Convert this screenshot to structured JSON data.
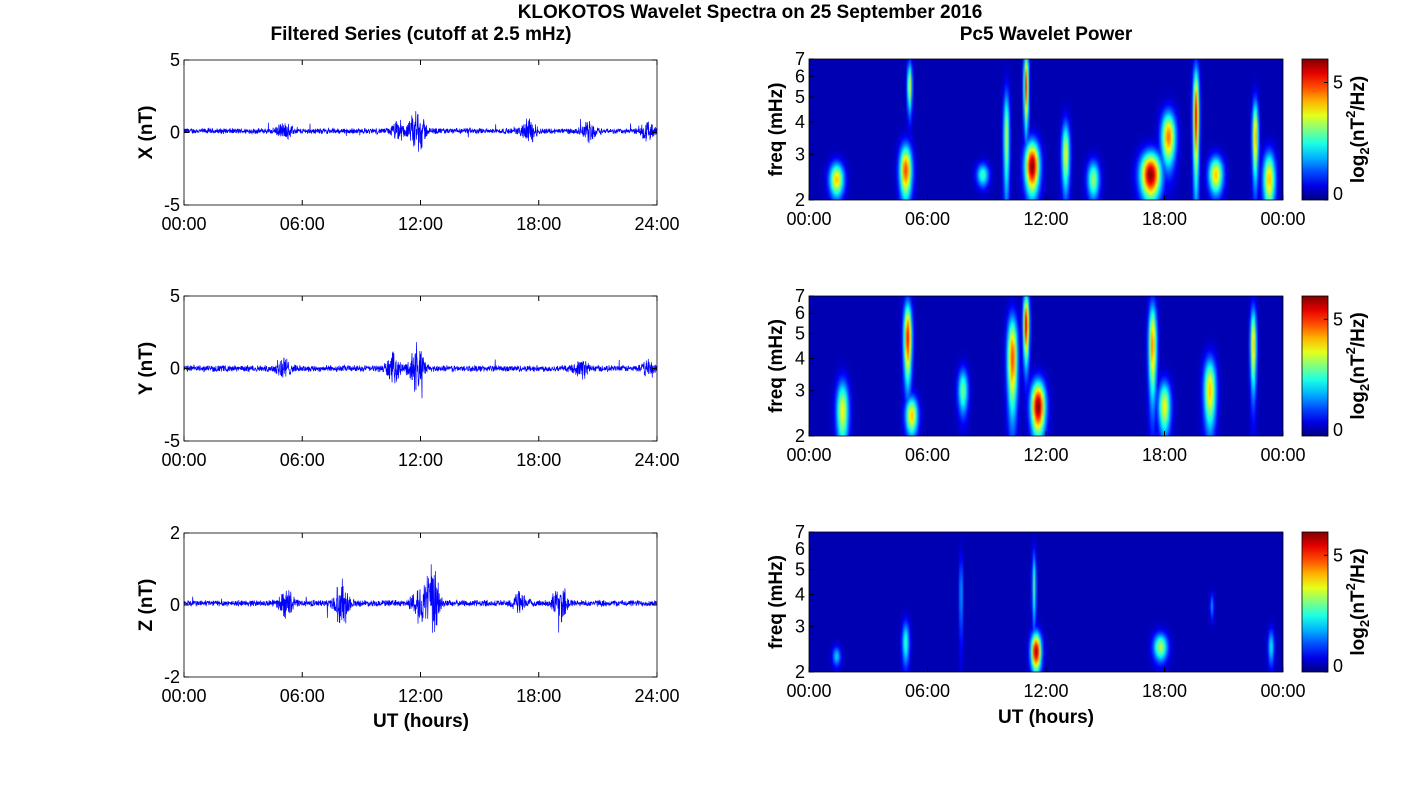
{
  "figure": {
    "suptitle": "KLOKOTOS Wavelet Spectra on 25 September 2016",
    "left_title": "Filtered Series (cutoff at 2.5 mHz)",
    "right_title": "Pc5 Wavelet Power",
    "x_label": "UT (hours)",
    "colors": {
      "trace": "#0000ff",
      "axes": "#000000"
    }
  },
  "chart_data": [
    {
      "type": "line",
      "component": "X",
      "ylabel": "X (nT)",
      "ylim": [
        -5,
        5
      ],
      "yticks": [
        "5",
        "0",
        "-5"
      ],
      "xlim": [
        0,
        24
      ],
      "xticks": [
        "00:00",
        "06:00",
        "12:00",
        "18:00",
        "24:00"
      ],
      "baseline": 0.1,
      "noise_amp": 0.22,
      "bursts": [
        {
          "t": 11.85,
          "amp": 1.9
        },
        {
          "t": 10.9,
          "amp": 0.7
        },
        {
          "t": 5.1,
          "amp": 0.55
        },
        {
          "t": 17.5,
          "amp": 0.9
        },
        {
          "t": 20.6,
          "amp": 0.7
        },
        {
          "t": 23.5,
          "amp": 0.7
        }
      ]
    },
    {
      "type": "line",
      "component": "Y",
      "ylabel": "Y (nT)",
      "ylim": [
        -5,
        5
      ],
      "yticks": [
        "5",
        "0",
        "-5"
      ],
      "xlim": [
        0,
        24
      ],
      "xticks": [
        "00:00",
        "06:00",
        "12:00",
        "18:00",
        "24:00"
      ],
      "baseline": 0.0,
      "noise_amp": 0.25,
      "bursts": [
        {
          "t": 11.8,
          "amp": 1.9
        },
        {
          "t": 10.6,
          "amp": 1.0
        },
        {
          "t": 5.0,
          "amp": 0.9
        },
        {
          "t": 20.2,
          "amp": 0.6
        },
        {
          "t": 23.6,
          "amp": 0.5
        }
      ]
    },
    {
      "type": "line",
      "component": "Z",
      "ylabel": "Z (nT)",
      "ylim": [
        -2,
        2
      ],
      "yticks": [
        "2",
        "0",
        "-2"
      ],
      "xlim": [
        0,
        24
      ],
      "xticks": [
        "00:00",
        "06:00",
        "12:00",
        "18:00",
        "24:00"
      ],
      "baseline": 0.05,
      "noise_amp": 0.1,
      "bursts": [
        {
          "t": 11.9,
          "amp": 0.5
        },
        {
          "t": 12.6,
          "amp": 1.2
        },
        {
          "t": 5.2,
          "amp": 0.4
        },
        {
          "t": 8.0,
          "amp": 0.7
        },
        {
          "t": 17.0,
          "amp": 0.3
        },
        {
          "t": 19.1,
          "amp": 0.6
        }
      ]
    },
    {
      "type": "heatmap",
      "component": "X",
      "ylabel": "freq (mHz)",
      "ylim": [
        2,
        7
      ],
      "yscale": "log",
      "yticks": [
        "7",
        "6",
        "5",
        "4",
        "3",
        "2"
      ],
      "xlim": [
        0,
        24
      ],
      "xticks": [
        "00:00",
        "06:00",
        "12:00",
        "18:00",
        "00:00"
      ],
      "colorbar_label": "log2(nT2/Hz)",
      "colorbar_ticks": [
        "5",
        "0"
      ],
      "crange": [
        0,
        6
      ],
      "blobs": [
        {
          "t": 1.4,
          "f": 2.4,
          "st": 0.35,
          "sf": 0.35,
          "p": 4.0
        },
        {
          "t": 4.9,
          "f": 2.6,
          "st": 0.3,
          "sf": 0.6,
          "p": 4.8
        },
        {
          "t": 5.1,
          "f": 5.5,
          "st": 0.12,
          "sf": 1.2,
          "p": 3.5
        },
        {
          "t": 8.8,
          "f": 2.5,
          "st": 0.3,
          "sf": 0.25,
          "p": 2.5
        },
        {
          "t": 10.0,
          "f": 3.5,
          "st": 0.15,
          "sf": 1.6,
          "p": 3.2
        },
        {
          "t": 11.3,
          "f": 2.7,
          "st": 0.35,
          "sf": 0.6,
          "p": 6.0
        },
        {
          "t": 11.0,
          "f": 5.5,
          "st": 0.12,
          "sf": 1.8,
          "p": 5.0
        },
        {
          "t": 13.0,
          "f": 3.0,
          "st": 0.2,
          "sf": 0.9,
          "p": 3.5
        },
        {
          "t": 14.4,
          "f": 2.4,
          "st": 0.3,
          "sf": 0.4,
          "p": 3.0
        },
        {
          "t": 17.3,
          "f": 2.5,
          "st": 0.5,
          "sf": 0.5,
          "p": 6.0
        },
        {
          "t": 18.2,
          "f": 3.5,
          "st": 0.35,
          "sf": 0.8,
          "p": 4.5
        },
        {
          "t": 19.6,
          "f": 4.2,
          "st": 0.15,
          "sf": 2.0,
          "p": 5.2
        },
        {
          "t": 20.6,
          "f": 2.5,
          "st": 0.35,
          "sf": 0.4,
          "p": 4.0
        },
        {
          "t": 22.6,
          "f": 3.5,
          "st": 0.15,
          "sf": 1.2,
          "p": 4.2
        },
        {
          "t": 23.3,
          "f": 2.4,
          "st": 0.3,
          "sf": 0.6,
          "p": 4.0
        }
      ]
    },
    {
      "type": "heatmap",
      "component": "Y",
      "ylabel": "freq (mHz)",
      "ylim": [
        2,
        7
      ],
      "yscale": "log",
      "yticks": [
        "7",
        "6",
        "5",
        "4",
        "3",
        "2"
      ],
      "xlim": [
        0,
        24
      ],
      "xticks": [
        "00:00",
        "06:00",
        "12:00",
        "18:00",
        "00:00"
      ],
      "colorbar_label": "log2(nT2/Hz)",
      "colorbar_ticks": [
        "5",
        "0"
      ],
      "crange": [
        0,
        6
      ],
      "blobs": [
        {
          "t": 1.7,
          "f": 2.5,
          "st": 0.3,
          "sf": 0.7,
          "p": 3.6
        },
        {
          "t": 5.0,
          "f": 4.8,
          "st": 0.2,
          "sf": 1.6,
          "p": 5.2
        },
        {
          "t": 5.2,
          "f": 2.4,
          "st": 0.3,
          "sf": 0.4,
          "p": 4.0
        },
        {
          "t": 7.8,
          "f": 3.0,
          "st": 0.25,
          "sf": 0.6,
          "p": 2.8
        },
        {
          "t": 10.3,
          "f": 4.0,
          "st": 0.25,
          "sf": 1.6,
          "p": 4.8
        },
        {
          "t": 11.6,
          "f": 2.6,
          "st": 0.35,
          "sf": 0.6,
          "p": 6.0
        },
        {
          "t": 11.0,
          "f": 5.4,
          "st": 0.15,
          "sf": 1.6,
          "p": 5.4
        },
        {
          "t": 17.4,
          "f": 4.5,
          "st": 0.2,
          "sf": 1.8,
          "p": 4.4
        },
        {
          "t": 18.0,
          "f": 2.6,
          "st": 0.3,
          "sf": 0.6,
          "p": 3.6
        },
        {
          "t": 20.3,
          "f": 3.0,
          "st": 0.3,
          "sf": 0.9,
          "p": 4.0
        },
        {
          "t": 22.5,
          "f": 4.5,
          "st": 0.15,
          "sf": 1.6,
          "p": 4.0
        }
      ]
    },
    {
      "type": "heatmap",
      "component": "Z",
      "ylabel": "freq (mHz)",
      "ylim": [
        2,
        7
      ],
      "yscale": "log",
      "yticks": [
        "7",
        "6",
        "5",
        "4",
        "3",
        "2"
      ],
      "xlim": [
        0,
        24
      ],
      "xticks": [
        "00:00",
        "06:00",
        "12:00",
        "18:00",
        "00:00"
      ],
      "colorbar_label": "log2(nT2/Hz)",
      "colorbar_ticks": [
        "5",
        "0"
      ],
      "crange": [
        0,
        6
      ],
      "blobs": [
        {
          "t": 1.4,
          "f": 2.3,
          "st": 0.2,
          "sf": 0.2,
          "p": 1.8
        },
        {
          "t": 4.9,
          "f": 2.6,
          "st": 0.18,
          "sf": 0.5,
          "p": 2.4
        },
        {
          "t": 7.7,
          "f": 4.0,
          "st": 0.08,
          "sf": 1.5,
          "p": 1.8
        },
        {
          "t": 11.5,
          "f": 2.4,
          "st": 0.25,
          "sf": 0.4,
          "p": 5.8
        },
        {
          "t": 11.4,
          "f": 4.3,
          "st": 0.1,
          "sf": 1.4,
          "p": 2.6
        },
        {
          "t": 17.8,
          "f": 2.5,
          "st": 0.35,
          "sf": 0.3,
          "p": 3.2
        },
        {
          "t": 20.4,
          "f": 3.6,
          "st": 0.1,
          "sf": 0.4,
          "p": 1.4
        },
        {
          "t": 23.4,
          "f": 2.5,
          "st": 0.15,
          "sf": 0.4,
          "p": 2.0
        }
      ]
    }
  ]
}
